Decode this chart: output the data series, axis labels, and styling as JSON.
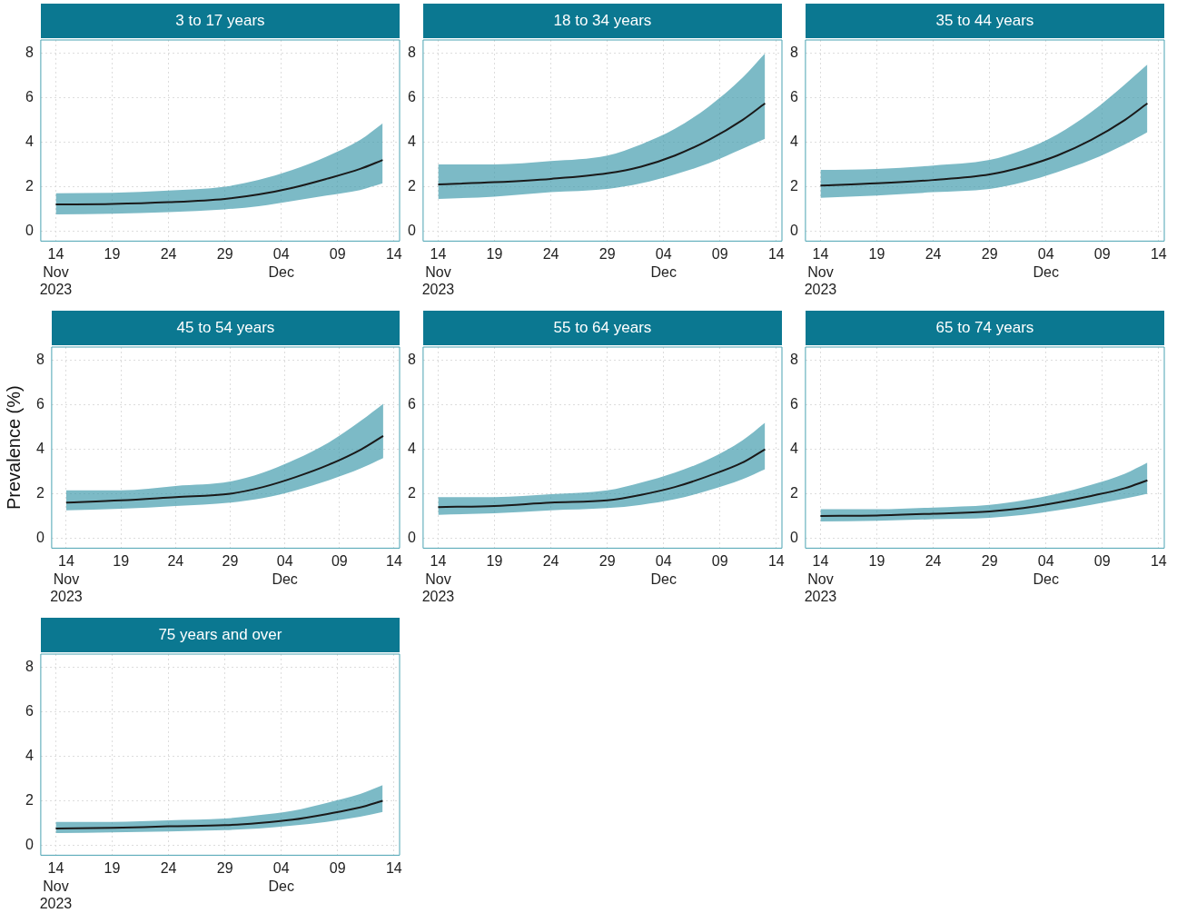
{
  "chart_data": [
    {
      "type": "line",
      "title": "3 to 17 years",
      "x": [
        "2023-11-14",
        "2023-11-19",
        "2023-11-24",
        "2023-11-29",
        "2023-12-02",
        "2023-12-05",
        "2023-12-08",
        "2023-12-11",
        "2023-12-13"
      ],
      "xlim": [
        "2023-11-12T16:00",
        "2023-12-14T12:00"
      ],
      "xticks": [
        {
          "value": "2023-11-14",
          "label": "14\nNov\n2023"
        },
        {
          "value": "2023-11-19",
          "label": "19"
        },
        {
          "value": "2023-11-24",
          "label": "24"
        },
        {
          "value": "2023-11-29",
          "label": "29"
        },
        {
          "value": "2023-12-04",
          "label": "04\nDec"
        },
        {
          "value": "2023-12-09",
          "label": "09"
        },
        {
          "value": "2023-12-14",
          "label": "14"
        }
      ],
      "ylim": [
        -0.45,
        8.6
      ],
      "yticks": [
        0,
        2,
        4,
        6,
        8
      ],
      "grid": true,
      "legend": false,
      "series": [
        {
          "color": "#1a1a1a",
          "values": [
            1.2,
            1.22,
            1.3,
            1.45,
            1.65,
            1.95,
            2.35,
            2.8,
            3.2
          ],
          "upper": [
            1.7,
            1.72,
            1.82,
            2.0,
            2.3,
            2.75,
            3.35,
            4.1,
            4.85
          ],
          "lower": [
            0.75,
            0.78,
            0.85,
            0.98,
            1.12,
            1.35,
            1.6,
            1.85,
            2.15
          ]
        }
      ]
    },
    {
      "type": "line",
      "title": "18 to 34 years",
      "x": [
        "2023-11-14",
        "2023-11-19",
        "2023-11-24",
        "2023-11-29",
        "2023-12-02",
        "2023-12-05",
        "2023-12-08",
        "2023-12-11",
        "2023-12-13"
      ],
      "xlim": [
        "2023-11-12T16:00",
        "2023-12-14T12:00"
      ],
      "xticks": [
        {
          "value": "2023-11-14",
          "label": "14\nNov\n2023"
        },
        {
          "value": "2023-11-19",
          "label": "19"
        },
        {
          "value": "2023-11-24",
          "label": "24"
        },
        {
          "value": "2023-11-29",
          "label": "29"
        },
        {
          "value": "2023-12-04",
          "label": "04\nDec"
        },
        {
          "value": "2023-12-09",
          "label": "09"
        },
        {
          "value": "2023-12-14",
          "label": "14"
        }
      ],
      "ylim": [
        -0.45,
        8.6
      ],
      "yticks": [
        0,
        2,
        4,
        6,
        8
      ],
      "grid": true,
      "legend": false,
      "series": [
        {
          "color": "#1a1a1a",
          "values": [
            2.1,
            2.2,
            2.35,
            2.6,
            2.9,
            3.4,
            4.1,
            5.0,
            5.75
          ],
          "upper": [
            3.0,
            3.0,
            3.15,
            3.4,
            3.9,
            4.6,
            5.6,
            6.9,
            8.0
          ],
          "lower": [
            1.45,
            1.55,
            1.75,
            1.9,
            2.15,
            2.55,
            3.05,
            3.7,
            4.15
          ]
        }
      ]
    },
    {
      "type": "line",
      "title": "35 to 44 years",
      "x": [
        "2023-11-14",
        "2023-11-19",
        "2023-11-24",
        "2023-11-29",
        "2023-12-02",
        "2023-12-05",
        "2023-12-08",
        "2023-12-11",
        "2023-12-13"
      ],
      "xlim": [
        "2023-11-12T16:00",
        "2023-12-14T12:00"
      ],
      "xticks": [
        {
          "value": "2023-11-14",
          "label": "14\nNov\n2023"
        },
        {
          "value": "2023-11-19",
          "label": "19"
        },
        {
          "value": "2023-11-24",
          "label": "24"
        },
        {
          "value": "2023-11-29",
          "label": "29"
        },
        {
          "value": "2023-12-04",
          "label": "04\nDec"
        },
        {
          "value": "2023-12-09",
          "label": "09"
        },
        {
          "value": "2023-12-14",
          "label": "14"
        }
      ],
      "ylim": [
        -0.45,
        8.6
      ],
      "yticks": [
        0,
        2,
        4,
        6,
        8
      ],
      "grid": true,
      "legend": false,
      "series": [
        {
          "color": "#1a1a1a",
          "values": [
            2.05,
            2.15,
            2.3,
            2.55,
            2.9,
            3.4,
            4.1,
            5.0,
            5.75
          ],
          "upper": [
            2.75,
            2.8,
            2.95,
            3.2,
            3.65,
            4.35,
            5.35,
            6.6,
            7.5
          ],
          "lower": [
            1.5,
            1.6,
            1.75,
            1.9,
            2.2,
            2.65,
            3.2,
            3.9,
            4.45
          ]
        }
      ]
    },
    {
      "type": "line",
      "title": "45 to 54 years",
      "ylabel": "Prevalence (%)",
      "x": [
        "2023-11-14",
        "2023-11-19",
        "2023-11-24",
        "2023-11-29",
        "2023-12-02",
        "2023-12-05",
        "2023-12-08",
        "2023-12-11",
        "2023-12-13"
      ],
      "xlim": [
        "2023-11-12T16:00",
        "2023-12-14T12:00"
      ],
      "xticks": [
        {
          "value": "2023-11-14",
          "label": "14\nNov\n2023"
        },
        {
          "value": "2023-11-19",
          "label": "19"
        },
        {
          "value": "2023-11-24",
          "label": "24"
        },
        {
          "value": "2023-11-29",
          "label": "29"
        },
        {
          "value": "2023-12-04",
          "label": "04\nDec"
        },
        {
          "value": "2023-12-09",
          "label": "09"
        },
        {
          "value": "2023-12-14",
          "label": "14"
        }
      ],
      "ylim": [
        -0.45,
        8.6
      ],
      "yticks": [
        0,
        2,
        4,
        6,
        8
      ],
      "grid": true,
      "legend": false,
      "series": [
        {
          "color": "#1a1a1a",
          "values": [
            1.6,
            1.7,
            1.85,
            2.0,
            2.3,
            2.75,
            3.3,
            4.0,
            4.6
          ],
          "upper": [
            2.15,
            2.15,
            2.35,
            2.55,
            2.95,
            3.55,
            4.3,
            5.3,
            6.05
          ],
          "lower": [
            1.25,
            1.32,
            1.45,
            1.6,
            1.8,
            2.15,
            2.6,
            3.15,
            3.6
          ]
        }
      ]
    },
    {
      "type": "line",
      "title": "55 to 64 years",
      "x": [
        "2023-11-14",
        "2023-11-19",
        "2023-11-24",
        "2023-11-29",
        "2023-12-02",
        "2023-12-05",
        "2023-12-08",
        "2023-12-11",
        "2023-12-13"
      ],
      "xlim": [
        "2023-11-12T16:00",
        "2023-12-14T12:00"
      ],
      "xticks": [
        {
          "value": "2023-11-14",
          "label": "14\nNov\n2023"
        },
        {
          "value": "2023-11-19",
          "label": "19"
        },
        {
          "value": "2023-11-24",
          "label": "24"
        },
        {
          "value": "2023-11-29",
          "label": "29"
        },
        {
          "value": "2023-12-04",
          "label": "04\nDec"
        },
        {
          "value": "2023-12-09",
          "label": "09"
        },
        {
          "value": "2023-12-14",
          "label": "14"
        }
      ],
      "ylim": [
        -0.45,
        8.6
      ],
      "yticks": [
        0,
        2,
        4,
        6,
        8
      ],
      "grid": true,
      "legend": false,
      "series": [
        {
          "color": "#1a1a1a",
          "values": [
            1.4,
            1.45,
            1.6,
            1.7,
            1.95,
            2.3,
            2.8,
            3.4,
            4.0
          ],
          "upper": [
            1.85,
            1.85,
            1.98,
            2.15,
            2.5,
            2.95,
            3.55,
            4.4,
            5.2
          ],
          "lower": [
            1.05,
            1.12,
            1.25,
            1.35,
            1.5,
            1.75,
            2.15,
            2.65,
            3.1
          ]
        }
      ]
    },
    {
      "type": "line",
      "title": "65 to 74 years",
      "x": [
        "2023-11-14",
        "2023-11-19",
        "2023-11-24",
        "2023-11-29",
        "2023-12-02",
        "2023-12-05",
        "2023-12-08",
        "2023-12-11",
        "2023-12-13"
      ],
      "xlim": [
        "2023-11-12T16:00",
        "2023-12-14T12:00"
      ],
      "xticks": [
        {
          "value": "2023-11-14",
          "label": "14\nNov\n2023"
        },
        {
          "value": "2023-11-19",
          "label": "19"
        },
        {
          "value": "2023-11-24",
          "label": "24"
        },
        {
          "value": "2023-11-29",
          "label": "29"
        },
        {
          "value": "2023-12-04",
          "label": "04\nDec"
        },
        {
          "value": "2023-12-09",
          "label": "09"
        },
        {
          "value": "2023-12-14",
          "label": "14"
        }
      ],
      "ylim": [
        -0.45,
        8.6
      ],
      "yticks": [
        0,
        2,
        4,
        6,
        8
      ],
      "grid": true,
      "legend": false,
      "series": [
        {
          "color": "#1a1a1a",
          "values": [
            1.0,
            1.02,
            1.1,
            1.2,
            1.35,
            1.6,
            1.9,
            2.25,
            2.6
          ],
          "upper": [
            1.3,
            1.3,
            1.38,
            1.5,
            1.7,
            2.0,
            2.4,
            2.9,
            3.4
          ],
          "lower": [
            0.75,
            0.78,
            0.85,
            0.92,
            1.05,
            1.25,
            1.5,
            1.78,
            2.0
          ]
        }
      ]
    },
    {
      "type": "line",
      "title": "75 years and over",
      "x": [
        "2023-11-14",
        "2023-11-19",
        "2023-11-24",
        "2023-11-29",
        "2023-12-02",
        "2023-12-05",
        "2023-12-08",
        "2023-12-11",
        "2023-12-13"
      ],
      "xlim": [
        "2023-11-12T16:00",
        "2023-12-14T12:00"
      ],
      "xticks": [
        {
          "value": "2023-11-14",
          "label": "14\nNov\n2023"
        },
        {
          "value": "2023-11-19",
          "label": "19"
        },
        {
          "value": "2023-11-24",
          "label": "24"
        },
        {
          "value": "2023-11-29",
          "label": "29"
        },
        {
          "value": "2023-12-04",
          "label": "04\nDec"
        },
        {
          "value": "2023-12-09",
          "label": "09"
        },
        {
          "value": "2023-12-14",
          "label": "14"
        }
      ],
      "ylim": [
        -0.45,
        8.6
      ],
      "yticks": [
        0,
        2,
        4,
        6,
        8
      ],
      "grid": true,
      "legend": false,
      "series": [
        {
          "color": "#1a1a1a",
          "values": [
            0.75,
            0.78,
            0.85,
            0.9,
            1.0,
            1.15,
            1.4,
            1.7,
            2.0
          ],
          "upper": [
            1.05,
            1.05,
            1.12,
            1.2,
            1.35,
            1.55,
            1.9,
            2.3,
            2.7
          ],
          "lower": [
            0.55,
            0.58,
            0.62,
            0.68,
            0.75,
            0.88,
            1.05,
            1.28,
            1.5
          ]
        }
      ]
    }
  ]
}
